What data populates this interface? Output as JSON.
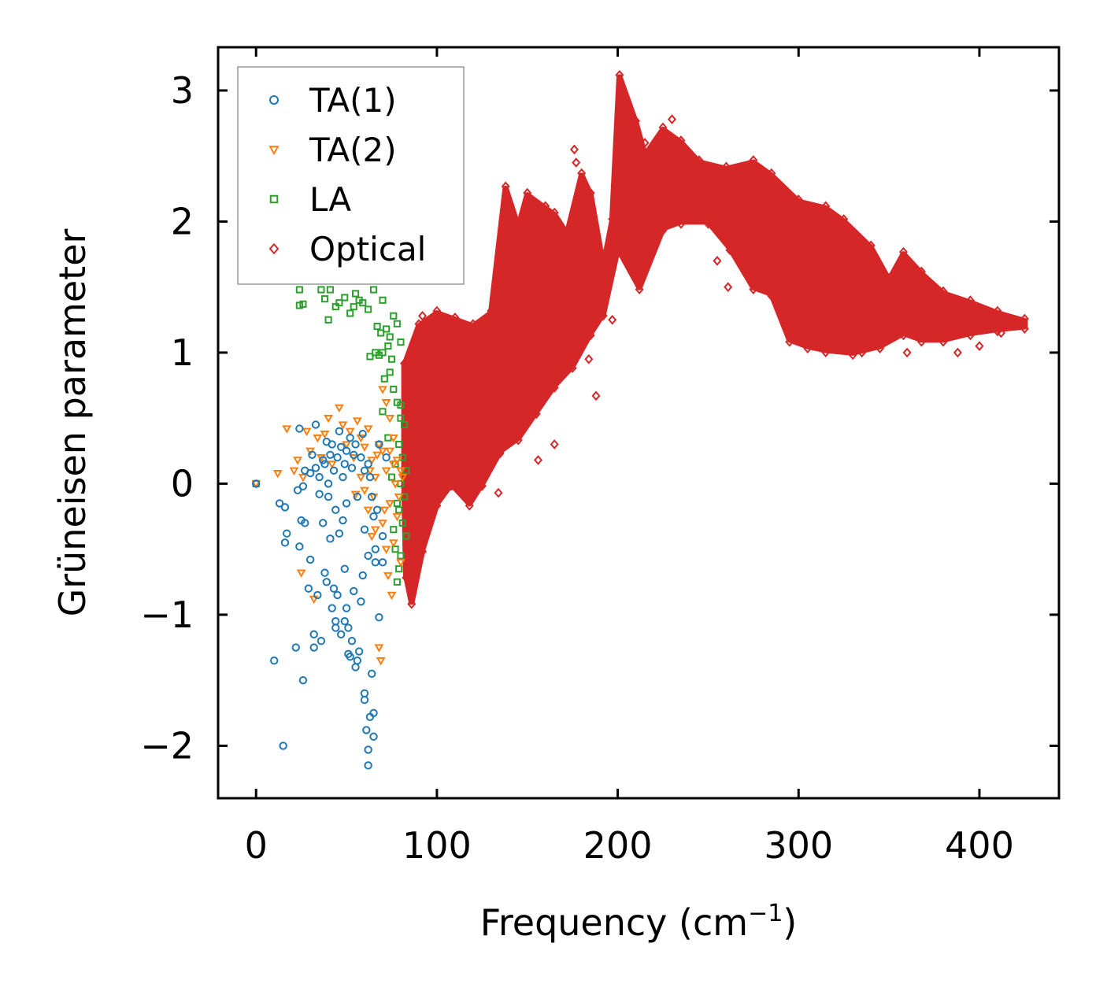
{
  "chart_data": {
    "type": "scatter",
    "title": "",
    "xlabel": "Frequency (cm",
    "xlabel_superscript": "−1",
    "xlabel_suffix": ")",
    "ylabel": "Grüneisen parameter",
    "xlim": [
      -21,
      444
    ],
    "ylim": [
      -2.4,
      3.33
    ],
    "xticks": [
      0,
      100,
      200,
      300,
      400
    ],
    "xtick_labels": [
      "0",
      "100",
      "200",
      "300",
      "400"
    ],
    "yticks": [
      -2,
      -1,
      0,
      1,
      2,
      3
    ],
    "ytick_labels": [
      "−2",
      "−1",
      "0",
      "1",
      "2",
      "3"
    ],
    "grid": false,
    "legend_position": "top-left",
    "series": [
      {
        "name": "TA(1)",
        "marker": "circle",
        "color": "#1f77b4",
        "points": [
          [
            0,
            0
          ],
          [
            10,
            -1.35
          ],
          [
            13,
            -0.15
          ],
          [
            15,
            -2
          ],
          [
            16,
            -0.45
          ],
          [
            17,
            -0.38
          ],
          [
            16,
            -0.18
          ],
          [
            22,
            -1.25
          ],
          [
            23,
            -0.05
          ],
          [
            24,
            -0.48
          ],
          [
            24,
            0.42
          ],
          [
            25,
            -0.28
          ],
          [
            26,
            -1.5
          ],
          [
            26,
            -0.02
          ],
          [
            27,
            -0.3
          ],
          [
            27,
            0.1
          ],
          [
            29,
            -0.8
          ],
          [
            30,
            -0.58
          ],
          [
            31,
            0.22
          ],
          [
            32,
            -1.15
          ],
          [
            32,
            -1.25
          ],
          [
            33,
            0.45
          ],
          [
            34,
            -0.85
          ],
          [
            35,
            -0.08
          ],
          [
            36,
            -1.2
          ],
          [
            37,
            -0.3
          ],
          [
            38,
            -0.68
          ],
          [
            39,
            -0.75
          ],
          [
            40,
            -0.1
          ],
          [
            41,
            -0.42
          ],
          [
            42,
            -0.95
          ],
          [
            43,
            -0.8
          ],
          [
            44,
            -1.1
          ],
          [
            44,
            -1.05
          ],
          [
            45,
            -0.85
          ],
          [
            46,
            -0.38
          ],
          [
            47,
            -1.15
          ],
          [
            48,
            -0.28
          ],
          [
            49,
            -0.65
          ],
          [
            49,
            -1.05
          ],
          [
            50,
            -0.95
          ],
          [
            51,
            -1.1
          ],
          [
            51,
            -1.3
          ],
          [
            52,
            -1.32
          ],
          [
            53,
            -1.2
          ],
          [
            54,
            -0.82
          ],
          [
            55,
            -1.4
          ],
          [
            56,
            -1.35
          ],
          [
            57,
            -1.28
          ],
          [
            58,
            -0.9
          ],
          [
            59,
            -0.7
          ],
          [
            60,
            -1.65
          ],
          [
            60,
            -1.6
          ],
          [
            61,
            -1.88
          ],
          [
            62,
            -2.03
          ],
          [
            62,
            -2.15
          ],
          [
            63,
            -1.78
          ],
          [
            64,
            -1.45
          ],
          [
            65,
            -1.93
          ],
          [
            65,
            -1.75
          ],
          [
            68,
            -1.02
          ],
          [
            66,
            -0.6
          ],
          [
            62,
            -0.55
          ],
          [
            38,
            0.15
          ],
          [
            42,
            0.3
          ],
          [
            45,
            0.2
          ],
          [
            50,
            0.25
          ],
          [
            55,
            0.3
          ],
          [
            60,
            0.1
          ],
          [
            48,
            0.05
          ],
          [
            40,
            0.0
          ],
          [
            35,
            0.05
          ],
          [
            30,
            0.08
          ],
          [
            52,
            0.35
          ],
          [
            46,
            0.4
          ],
          [
            58,
            0.2
          ],
          [
            63,
            0.05
          ],
          [
            44,
            -0.2
          ],
          [
            50,
            -0.15
          ],
          [
            56,
            -0.1
          ],
          [
            60,
            -0.35
          ],
          [
            65,
            -0.25
          ],
          [
            70,
            -0.4
          ],
          [
            67,
            -0.2
          ],
          [
            62,
            0.15
          ],
          [
            53,
            0.12
          ],
          [
            47,
            0.28
          ],
          [
            41,
            0.22
          ],
          [
            37,
            0.18
          ],
          [
            33,
            0.12
          ],
          [
            39,
            0.32
          ],
          [
            54,
            0.22
          ],
          [
            59,
            0.38
          ],
          [
            64,
            -0.1
          ],
          [
            66,
            -0.5
          ],
          [
            70,
            -0.6
          ],
          [
            72,
            0.2
          ],
          [
            68,
            0.3
          ],
          [
            43,
            0.1
          ],
          [
            49,
            0.15
          ]
        ]
      },
      {
        "name": "TA(2)",
        "marker": "triangle-down",
        "color": "#ff7f0e",
        "points": [
          [
            0,
            0
          ],
          [
            12,
            0.08
          ],
          [
            17,
            0.42
          ],
          [
            21,
            0.1
          ],
          [
            23,
            0.18
          ],
          [
            25,
            -0.68
          ],
          [
            26,
            0.05
          ],
          [
            28,
            0.4
          ],
          [
            30,
            0.25
          ],
          [
            32,
            -0.88
          ],
          [
            34,
            0.35
          ],
          [
            36,
            0.2
          ],
          [
            38,
            0.38
          ],
          [
            40,
            0.5
          ],
          [
            42,
            0.15
          ],
          [
            46,
            0.58
          ],
          [
            48,
            0.45
          ],
          [
            50,
            0.3
          ],
          [
            52,
            0.4
          ],
          [
            54,
            0.2
          ],
          [
            56,
            0.48
          ],
          [
            58,
            0.35
          ],
          [
            60,
            0.28
          ],
          [
            62,
            0.42
          ],
          [
            64,
            0.18
          ],
          [
            66,
            0.05
          ],
          [
            68,
            0.3
          ],
          [
            70,
            0.25
          ],
          [
            72,
            0.1
          ],
          [
            74,
            0.5
          ],
          [
            76,
            0.35
          ],
          [
            78,
            0.18
          ],
          [
            80,
            0.1
          ],
          [
            70,
            0.72
          ],
          [
            72,
            0.62
          ],
          [
            68,
            -1.25
          ],
          [
            69,
            -1.35
          ],
          [
            62,
            -0.2
          ],
          [
            64,
            -0.4
          ],
          [
            66,
            -0.35
          ],
          [
            70,
            -0.3
          ],
          [
            72,
            -0.5
          ],
          [
            74,
            -0.15
          ],
          [
            76,
            -0.45
          ],
          [
            78,
            -0.25
          ],
          [
            80,
            -0.6
          ],
          [
            75,
            -0.85
          ],
          [
            73,
            -0.7
          ],
          [
            71,
            -0.2
          ],
          [
            65,
            -0.1
          ],
          [
            60,
            -0.05
          ],
          [
            55,
            -0.08
          ],
          [
            58,
            0.05
          ],
          [
            77,
            0.0
          ],
          [
            79,
            -0.1
          ],
          [
            81,
            0.05
          ],
          [
            74,
            0.25
          ],
          [
            76,
            0.15
          ],
          [
            63,
            0.1
          ],
          [
            67,
            0.22
          ]
        ]
      },
      {
        "name": "LA",
        "marker": "square",
        "color": "#2ca02c",
        "points": [
          [
            0,
            0
          ],
          [
            24,
            1.48
          ],
          [
            24,
            1.36
          ],
          [
            26,
            1.37
          ],
          [
            36,
            1.48
          ],
          [
            38,
            1.41
          ],
          [
            40,
            1.25
          ],
          [
            41,
            1.48
          ],
          [
            44,
            1.35
          ],
          [
            46,
            1.38
          ],
          [
            49,
            1.42
          ],
          [
            52,
            1.3
          ],
          [
            54,
            1.35
          ],
          [
            55,
            1.45
          ],
          [
            57,
            1.4
          ],
          [
            59,
            1.38
          ],
          [
            62,
            1.33
          ],
          [
            65,
            1.48
          ],
          [
            67,
            1.2
          ],
          [
            69,
            1.15
          ],
          [
            70,
            1.4
          ],
          [
            72,
            1.18
          ],
          [
            74,
            1.12
          ],
          [
            76,
            1.28
          ],
          [
            78,
            1.22
          ],
          [
            80,
            1.08
          ],
          [
            66,
            1.0
          ],
          [
            68,
            0.98
          ],
          [
            70,
            1.0
          ],
          [
            73,
            1.05
          ],
          [
            75,
            0.95
          ],
          [
            63,
            0.97
          ],
          [
            71,
            0.8
          ],
          [
            74,
            0.85
          ],
          [
            76,
            0.72
          ],
          [
            78,
            0.62
          ],
          [
            80,
            0.5
          ],
          [
            82,
            0.45
          ],
          [
            79,
            0.3
          ],
          [
            81,
            0.2
          ],
          [
            83,
            0.1
          ],
          [
            80,
            0.0
          ],
          [
            82,
            -0.1
          ],
          [
            79,
            -0.2
          ],
          [
            81,
            -0.3
          ],
          [
            83,
            -0.4
          ],
          [
            80,
            -0.55
          ],
          [
            78,
            -0.75
          ],
          [
            79,
            -0.65
          ],
          [
            77,
            -0.5
          ],
          [
            76,
            -0.35
          ],
          [
            78,
            -0.15
          ],
          [
            75,
            0.05
          ],
          [
            77,
            0.15
          ],
          [
            80,
            0.6
          ],
          [
            70,
            0.55
          ],
          [
            73,
            0.35
          ]
        ]
      }
    ],
    "optical_band_upper": [
      [
        82,
        0.9
      ],
      [
        90,
        1.2
      ],
      [
        100,
        1.3
      ],
      [
        110,
        1.25
      ],
      [
        120,
        1.2
      ],
      [
        130,
        1.3
      ],
      [
        138,
        2.25
      ],
      [
        145,
        1.95
      ],
      [
        150,
        2.2
      ],
      [
        160,
        2.1
      ],
      [
        165,
        2.05
      ],
      [
        172,
        1.9
      ],
      [
        180,
        2.35
      ],
      [
        185,
        2.2
      ],
      [
        192,
        1.65
      ],
      [
        197,
        2.0
      ],
      [
        201,
        3.1
      ],
      [
        210,
        2.75
      ],
      [
        215,
        2.5
      ],
      [
        225,
        2.7
      ],
      [
        235,
        2.6
      ],
      [
        245,
        2.45
      ],
      [
        260,
        2.4
      ],
      [
        275,
        2.45
      ],
      [
        285,
        2.35
      ],
      [
        300,
        2.15
      ],
      [
        315,
        2.1
      ],
      [
        325,
        2.0
      ],
      [
        340,
        1.8
      ],
      [
        350,
        1.55
      ],
      [
        358,
        1.75
      ],
      [
        368,
        1.6
      ],
      [
        380,
        1.45
      ],
      [
        395,
        1.38
      ],
      [
        410,
        1.3
      ],
      [
        425,
        1.24
      ]
    ],
    "optical_band_lower": [
      [
        425,
        1.2
      ],
      [
        410,
        1.18
      ],
      [
        395,
        1.15
      ],
      [
        380,
        1.1
      ],
      [
        368,
        1.1
      ],
      [
        358,
        1.15
      ],
      [
        345,
        1.05
      ],
      [
        330,
        1.0
      ],
      [
        315,
        1.02
      ],
      [
        305,
        1.05
      ],
      [
        295,
        1.1
      ],
      [
        285,
        1.45
      ],
      [
        275,
        1.5
      ],
      [
        262,
        1.8
      ],
      [
        250,
        2.0
      ],
      [
        235,
        2.0
      ],
      [
        225,
        1.95
      ],
      [
        212,
        1.5
      ],
      [
        200,
        1.8
      ],
      [
        192,
        1.3
      ],
      [
        185,
        1.15
      ],
      [
        175,
        0.9
      ],
      [
        165,
        0.75
      ],
      [
        155,
        0.55
      ],
      [
        145,
        0.35
      ],
      [
        135,
        0.25
      ],
      [
        125,
        0.0
      ],
      [
        118,
        -0.15
      ],
      [
        108,
        0.0
      ],
      [
        100,
        -0.15
      ],
      [
        92,
        -0.5
      ],
      [
        86,
        -0.9
      ],
      [
        83,
        -0.7
      ],
      [
        82,
        0.0
      ]
    ],
    "optical_outliers": [
      [
        176,
        2.55
      ],
      [
        177,
        2.45
      ],
      [
        134,
        -0.07
      ],
      [
        92,
        1.28
      ],
      [
        156,
        0.18
      ],
      [
        165,
        0.3
      ],
      [
        188,
        0.67
      ],
      [
        184,
        0.95
      ],
      [
        197,
        1.25
      ],
      [
        215,
        2.6
      ],
      [
        230,
        2.78
      ],
      [
        255,
        1.7
      ],
      [
        261,
        1.5
      ],
      [
        270,
        1.92
      ],
      [
        275,
        1.6
      ],
      [
        290,
        1.75
      ],
      [
        300,
        1.3
      ],
      [
        310,
        1.05
      ],
      [
        320,
        1.25
      ],
      [
        335,
        1.0
      ],
      [
        350,
        1.35
      ],
      [
        360,
        1.0
      ],
      [
        370,
        1.25
      ],
      [
        388,
        1.0
      ],
      [
        400,
        1.05
      ],
      [
        412,
        1.15
      ],
      [
        420,
        1.22
      ]
    ],
    "optical_series_name": "Optical",
    "optical_color": "#d62728"
  }
}
